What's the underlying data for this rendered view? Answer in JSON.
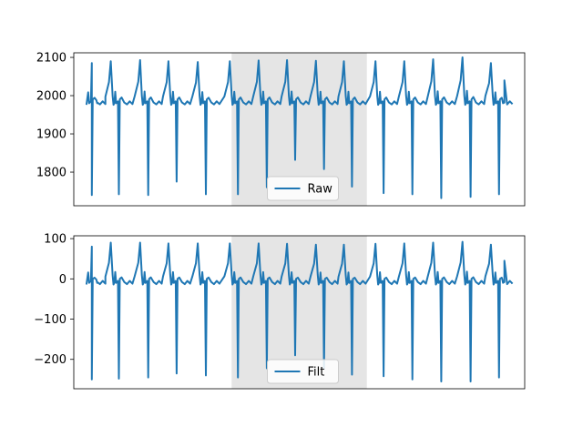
{
  "chart_data": [
    {
      "type": "line",
      "title": "",
      "xlabel": "",
      "ylabel": "",
      "ylim": [
        1712,
        2112
      ],
      "yticks": [
        1800,
        1900,
        2000,
        2100
      ],
      "x_ticks_visible": false,
      "shaded_region": {
        "x_start": 0.35,
        "x_end": 0.65,
        "color": "#e5e5e5"
      },
      "line_color": "#1f77b4",
      "legend": {
        "position": "bottom-center",
        "entries": [
          "Raw"
        ]
      },
      "series": [
        {
          "name": "Raw",
          "baseline": 1980,
          "beats": [
            {
              "x": 0.04,
              "peak": 2085,
              "trough": 1740
            },
            {
              "x": 0.1,
              "peak": 2090,
              "trough": 1742
            },
            {
              "x": 0.165,
              "peak": 2093,
              "trough": 1740
            },
            {
              "x": 0.228,
              "peak": 2090,
              "trough": 1775
            },
            {
              "x": 0.293,
              "peak": 2088,
              "trough": 1742
            },
            {
              "x": 0.364,
              "peak": 2090,
              "trough": 1742
            },
            {
              "x": 0.428,
              "peak": 2092,
              "trough": 1760
            },
            {
              "x": 0.491,
              "peak": 2093,
              "trough": 1832
            },
            {
              "x": 0.555,
              "peak": 2091,
              "trough": 1808
            },
            {
              "x": 0.617,
              "peak": 2090,
              "trough": 1762
            },
            {
              "x": 0.687,
              "peak": 2090,
              "trough": 1745
            },
            {
              "x": 0.751,
              "peak": 2090,
              "trough": 1742
            },
            {
              "x": 0.815,
              "peak": 2095,
              "trough": 1732
            },
            {
              "x": 0.88,
              "peak": 2100,
              "trough": 1735
            },
            {
              "x": 0.943,
              "peak": 2085,
              "trough": 1742
            }
          ],
          "start_value": 2085,
          "end_value": 2040
        }
      ]
    },
    {
      "type": "line",
      "title": "",
      "xlabel": "",
      "ylabel": "",
      "ylim": [
        -273,
        107
      ],
      "yticks": [
        -200,
        -100,
        0,
        100
      ],
      "x_ticks_visible": false,
      "shaded_region": {
        "x_start": 0.35,
        "x_end": 0.65,
        "color": "#e5e5e5"
      },
      "line_color": "#1f77b4",
      "legend": {
        "position": "bottom-center",
        "entries": [
          "Filt"
        ]
      },
      "series": [
        {
          "name": "Filt",
          "baseline": -10,
          "beats": [
            {
              "x": 0.04,
              "peak": 85,
              "trough": -250
            },
            {
              "x": 0.1,
              "peak": 90,
              "trough": -248
            },
            {
              "x": 0.165,
              "peak": 90,
              "trough": -245
            },
            {
              "x": 0.228,
              "peak": 88,
              "trough": -235
            },
            {
              "x": 0.293,
              "peak": 88,
              "trough": -240
            },
            {
              "x": 0.364,
              "peak": 88,
              "trough": -245
            },
            {
              "x": 0.428,
              "peak": 88,
              "trough": -222
            },
            {
              "x": 0.491,
              "peak": 87,
              "trough": -190
            },
            {
              "x": 0.555,
              "peak": 85,
              "trough": -222
            },
            {
              "x": 0.617,
              "peak": 85,
              "trough": -238
            },
            {
              "x": 0.687,
              "peak": 87,
              "trough": -242
            },
            {
              "x": 0.751,
              "peak": 88,
              "trough": -250
            },
            {
              "x": 0.815,
              "peak": 90,
              "trough": -255
            },
            {
              "x": 0.88,
              "peak": 92,
              "trough": -255
            },
            {
              "x": 0.943,
              "peak": 85,
              "trough": -245
            }
          ],
          "start_value": 80,
          "end_value": 45
        }
      ]
    }
  ]
}
